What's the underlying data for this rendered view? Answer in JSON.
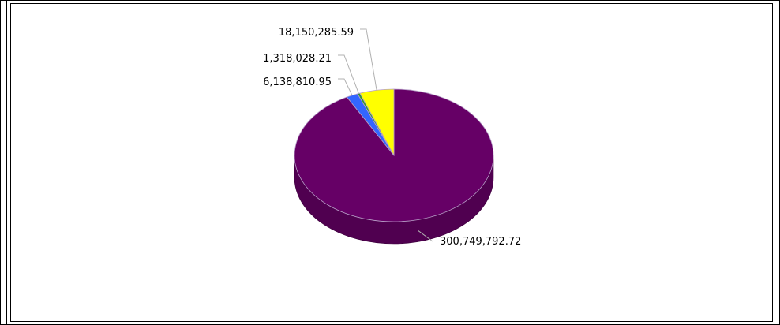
{
  "chart_data": {
    "type": "pie",
    "style": "3d",
    "title": "",
    "legend": "none",
    "slices": [
      {
        "label": "300,749,792.72",
        "value": 300749792.72,
        "color": "#660066"
      },
      {
        "label": "6,138,810.95",
        "value": 6138810.95,
        "color": "#3366ff"
      },
      {
        "label": "1,318,028.21",
        "value": 1318028.21,
        "color": "#339933"
      },
      {
        "label": "18,150,285.59",
        "value": 18150285.59,
        "color": "#ffff00"
      }
    ]
  }
}
